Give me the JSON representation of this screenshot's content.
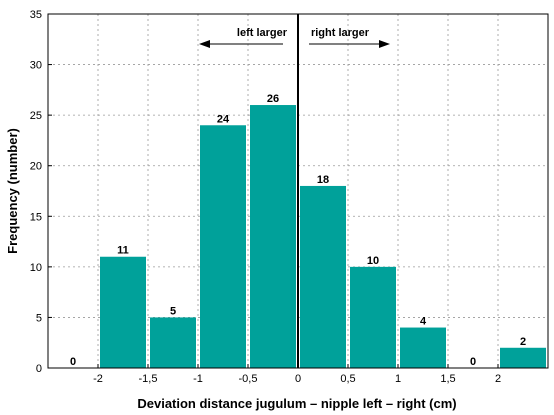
{
  "chart_data": {
    "type": "bar",
    "bins": [
      {
        "from": -2.5,
        "to": -2.0,
        "value": 0
      },
      {
        "from": -2.0,
        "to": -1.5,
        "value": 11
      },
      {
        "from": -1.5,
        "to": -1.0,
        "value": 5
      },
      {
        "from": -1.0,
        "to": -0.5,
        "value": 24
      },
      {
        "from": -0.5,
        "to": 0.0,
        "value": 26
      },
      {
        "from": 0.0,
        "to": 0.5,
        "value": 18
      },
      {
        "from": 0.5,
        "to": 1.0,
        "value": 10
      },
      {
        "from": 1.0,
        "to": 1.5,
        "value": 4
      },
      {
        "from": 1.5,
        "to": 2.0,
        "value": 0
      },
      {
        "from": 2.0,
        "to": 2.5,
        "value": 2
      }
    ],
    "data_labels": [
      "0",
      "11",
      "5",
      "24",
      "26",
      "18",
      "10",
      "4",
      "0",
      "2"
    ],
    "xlabel": "Deviation distance jugulum – nipple left  – right (cm)",
    "ylabel": "Frequency (number)",
    "xlim": [
      -2.5,
      2.5
    ],
    "ylim": [
      0,
      35
    ],
    "xticks": [
      "-2",
      "-1,5",
      "-1",
      "-0,5",
      "0",
      "0,5",
      "1",
      "1,5",
      "2"
    ],
    "xtick_values": [
      -2,
      -1.5,
      -1,
      -0.5,
      0,
      0.5,
      1,
      1.5,
      2
    ],
    "yticks": [
      "0",
      "5",
      "10",
      "15",
      "20",
      "25",
      "30",
      "35"
    ],
    "ytick_values": [
      0,
      5,
      10,
      15,
      20,
      25,
      30,
      35
    ],
    "reference_line_x": 0,
    "annotations": {
      "left": "left larger",
      "right": "right larger"
    },
    "grid": true,
    "bar_color": "#00a19a"
  }
}
